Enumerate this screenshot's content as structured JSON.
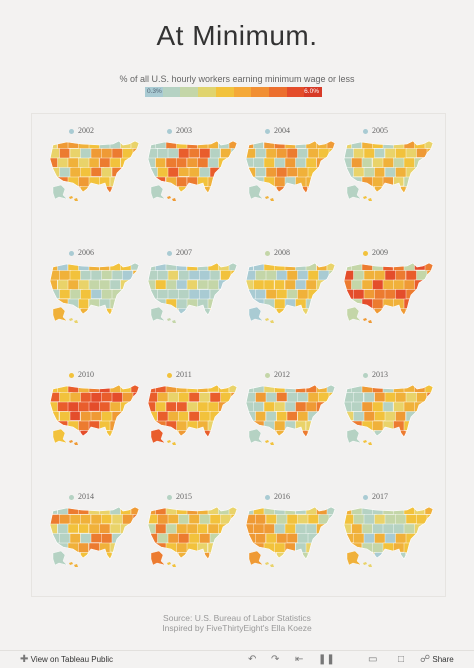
{
  "header": {
    "title": "At Minimum.",
    "subtitle": "% of all U.S. hourly workers earning minimum wage or less"
  },
  "legend": {
    "min_label": "0.3%",
    "max_label": "6.0%",
    "colors": [
      "#a9cbd3",
      "#b5d2c3",
      "#c4d6a8",
      "#e0d46e",
      "#f2c23c",
      "#f5a938",
      "#f18f33",
      "#ec6f2e",
      "#e44d2b",
      "#d73a27"
    ]
  },
  "years": [
    {
      "label": "2002",
      "dot": "#a9cbd3",
      "palette": [
        "#f0b13a",
        "#ef9a35",
        "#f2c23c",
        "#ec7b30",
        "#e9d36a",
        "#b5d2c3"
      ]
    },
    {
      "label": "2003",
      "dot": "#a9cbd3",
      "palette": [
        "#ef9a35",
        "#ec7b30",
        "#f0b13a",
        "#e95d2c",
        "#f2c23c",
        "#b5d2c3"
      ]
    },
    {
      "label": "2004",
      "dot": "#a9cbd3",
      "palette": [
        "#f0b13a",
        "#ef9a35",
        "#ec7b30",
        "#f2c23c",
        "#e9d36a",
        "#b5d2c3"
      ]
    },
    {
      "label": "2005",
      "dot": "#a9cbd3",
      "palette": [
        "#f2c23c",
        "#f0b13a",
        "#e9d36a",
        "#ef9a35",
        "#c4d6a8",
        "#b5d2c3"
      ]
    },
    {
      "label": "2006",
      "dot": "#a9cbd3",
      "palette": [
        "#e9d36a",
        "#f2c23c",
        "#c4d6a8",
        "#b5d2c3",
        "#a9cbd3",
        "#f0b13a"
      ]
    },
    {
      "label": "2007",
      "dot": "#a9cbd3",
      "palette": [
        "#c4d6a8",
        "#b5d2c3",
        "#e9d36a",
        "#a9cbd3",
        "#f2c23c",
        "#b5d2c3"
      ]
    },
    {
      "label": "2008",
      "dot": "#c4d6a8",
      "palette": [
        "#e9d36a",
        "#f2c23c",
        "#c4d6a8",
        "#f0b13a",
        "#b5d2c3",
        "#a9cbd3"
      ]
    },
    {
      "label": "2009",
      "dot": "#f2c23c",
      "palette": [
        "#ef9a35",
        "#ec7b30",
        "#e95d2c",
        "#f0b13a",
        "#e44d2b",
        "#c4d6a8"
      ]
    },
    {
      "label": "2010",
      "dot": "#f2c23c",
      "palette": [
        "#ef9a35",
        "#ec7b30",
        "#e95d2c",
        "#f0b13a",
        "#e44d2b",
        "#f2c23c"
      ]
    },
    {
      "label": "2011",
      "dot": "#f2c23c",
      "palette": [
        "#f2c23c",
        "#f0b13a",
        "#ef9a35",
        "#ec7b30",
        "#e9d36a",
        "#e95d2c"
      ]
    },
    {
      "label": "2012",
      "dot": "#c4d6a8",
      "palette": [
        "#f2c23c",
        "#f0b13a",
        "#e9d36a",
        "#ef9a35",
        "#ec7b30",
        "#b5d2c3"
      ]
    },
    {
      "label": "2013",
      "dot": "#b5d2c3",
      "palette": [
        "#f2c23c",
        "#f0b13a",
        "#ef9a35",
        "#e9d36a",
        "#ec7b30",
        "#b5d2c3"
      ]
    },
    {
      "label": "2014",
      "dot": "#b5d2c3",
      "palette": [
        "#f0b13a",
        "#ef9a35",
        "#ec7b30",
        "#f2c23c",
        "#e9d36a",
        "#b5d2c3"
      ]
    },
    {
      "label": "2015",
      "dot": "#b5d2c3",
      "palette": [
        "#f2c23c",
        "#f0b13a",
        "#e9d36a",
        "#ef9a35",
        "#c4d6a8",
        "#ec7b30"
      ]
    },
    {
      "label": "2016",
      "dot": "#a9cbd3",
      "palette": [
        "#e9d36a",
        "#f2c23c",
        "#c4d6a8",
        "#f0b13a",
        "#b5d2c3",
        "#ef9a35"
      ]
    },
    {
      "label": "2017",
      "dot": "#a9cbd3",
      "palette": [
        "#e9d36a",
        "#c4d6a8",
        "#b5d2c3",
        "#f2c23c",
        "#a9cbd3",
        "#f0b13a"
      ]
    }
  ],
  "footer": {
    "source": "Source: U.S. Bureau of Labor Statistics",
    "inspired": "Inspired by FiveThirtyEight's Ella Koeze"
  },
  "toolbar": {
    "view_on": "View on Tableau Public",
    "share": "Share",
    "icons": [
      "tableau-logo-icon",
      "undo-icon",
      "redo-icon",
      "revert-icon",
      "pause-icon",
      "device-preview-icon",
      "fullscreen-icon",
      "share-icon"
    ]
  }
}
